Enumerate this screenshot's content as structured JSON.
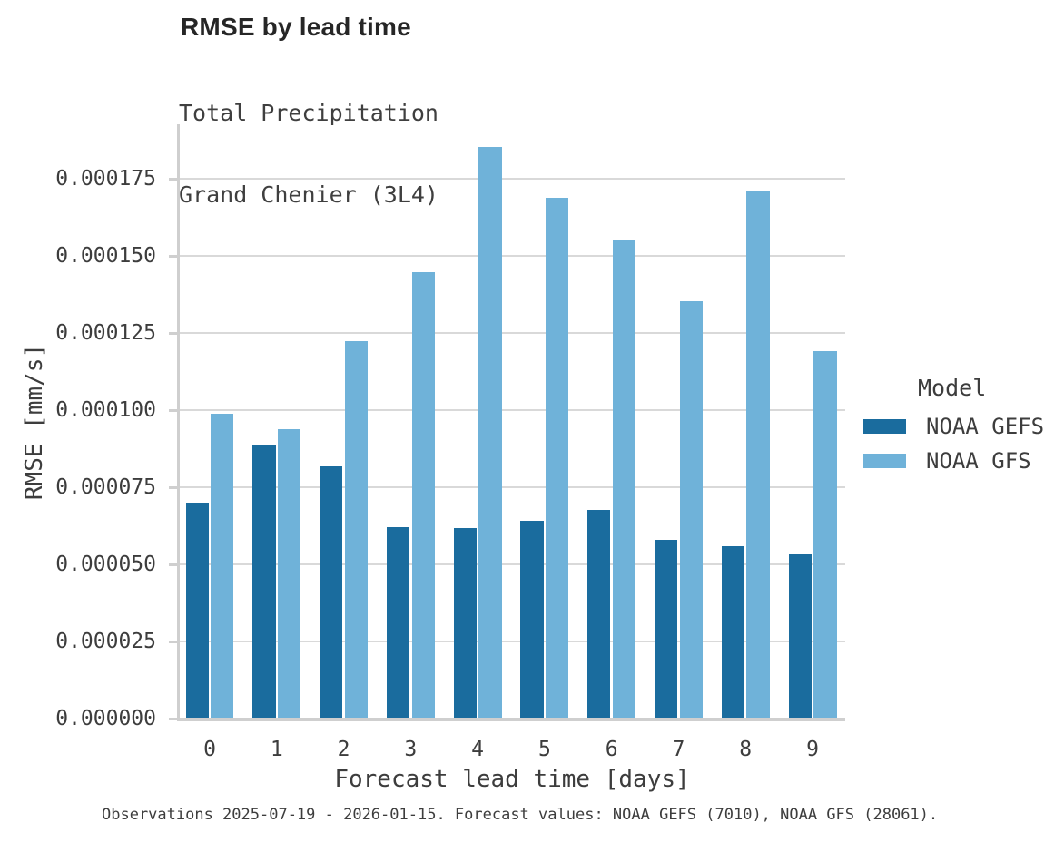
{
  "header": {
    "title": "RMSE by lead time",
    "subtitle_line1": "Total Precipitation",
    "subtitle_line2": "Grand Chenier (3L4)"
  },
  "legend": {
    "title": "Model",
    "items": [
      {
        "label": "NOAA GEFS",
        "color": "#1A6C9E"
      },
      {
        "label": "NOAA GFS",
        "color": "#6FB2D9"
      }
    ]
  },
  "caption": {
    "text": "Observations 2025-07-19 - 2026-01-15. Forecast values: NOAA GEFS (7010), NOAA GFS (28061)."
  },
  "colors": {
    "gefs_bar": "#1A6C9E",
    "gfs_bar": "#6FB2D9",
    "gridline": "#D9D9D9",
    "axis": "#CFCFCF",
    "text": "#3D3D3D",
    "title_text": "#262626"
  },
  "chart_data": {
    "type": "bar",
    "title": "RMSE by lead time",
    "subtitle": [
      "Total Precipitation",
      "Grand Chenier (3L4)"
    ],
    "categories": [
      "0",
      "1",
      "2",
      "3",
      "4",
      "5",
      "6",
      "7",
      "8",
      "9"
    ],
    "series": [
      {
        "name": "NOAA GEFS",
        "color": "#1A6C9E",
        "values": [
          6.96e-05,
          8.84e-05,
          8.15e-05,
          6.19e-05,
          6.14e-05,
          6.38e-05,
          6.73e-05,
          5.77e-05,
          5.55e-05,
          5.29e-05
        ]
      },
      {
        "name": "NOAA GFS",
        "color": "#6FB2D9",
        "values": [
          9.86e-05,
          9.37e-05,
          0.0001221,
          0.0001446,
          0.0001851,
          0.0001686,
          0.0001549,
          0.000135,
          0.0001707,
          0.000119
        ]
      }
    ],
    "xlabel": "Forecast lead time [days]",
    "ylabel": "RMSE [mm/s]",
    "ylim": [
      0,
      0.00019271
    ],
    "ytick_step": 2.5e-05,
    "yticks": [
      0.0,
      2.5e-05,
      5e-05,
      7.5e-05,
      0.0001,
      0.000125,
      0.00015,
      0.000175
    ],
    "grid": "horizontal",
    "legend_position": "right",
    "legend_title": "Model",
    "caption": "Observations 2025-07-19 - 2026-01-15. Forecast values: NOAA GEFS (7010), NOAA GFS (28061)."
  }
}
